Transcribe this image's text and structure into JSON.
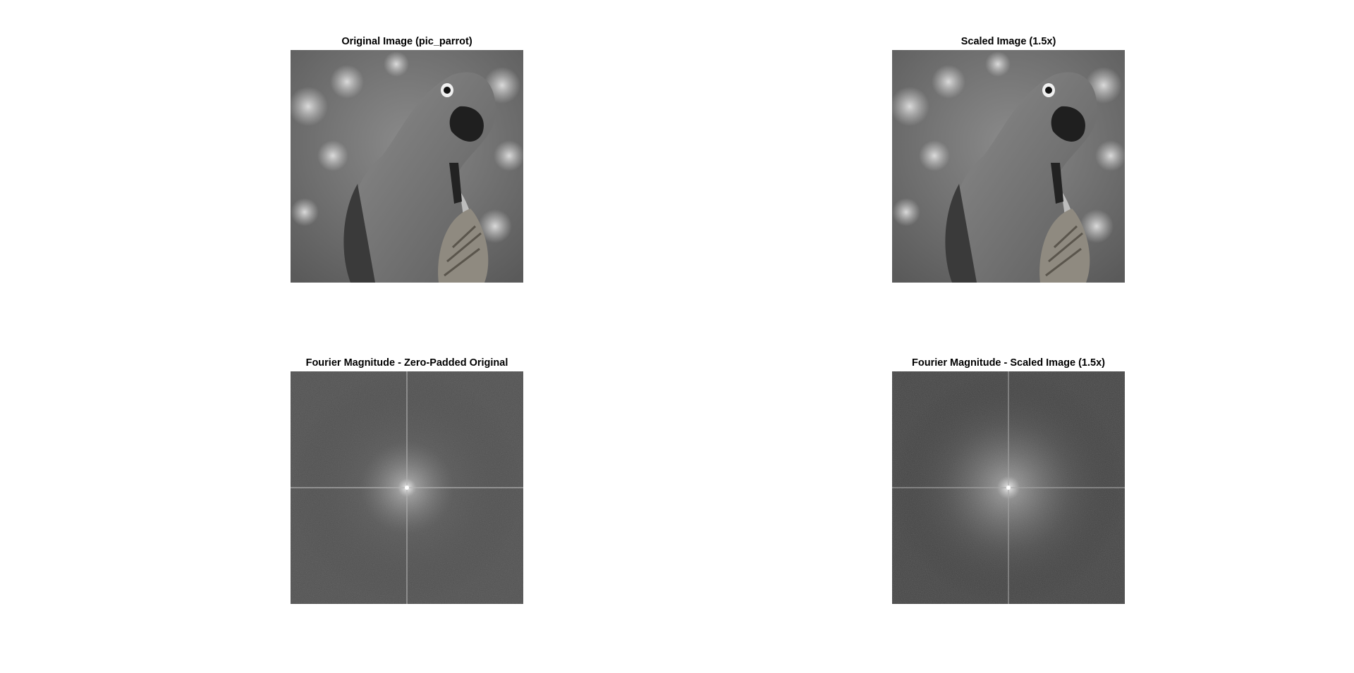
{
  "figure": {
    "panels": [
      {
        "title": "Original Image (pic_parrot)",
        "content": "parrot-photo"
      },
      {
        "title": "Scaled Image (1.5x)",
        "content": "parrot-photo"
      },
      {
        "title": "Fourier Magnitude - Zero-Padded Original",
        "content": "fourier-spectrum"
      },
      {
        "title": "Fourier Magnitude - Scaled Image (1.5x)",
        "content": "fourier-spectrum"
      }
    ]
  }
}
